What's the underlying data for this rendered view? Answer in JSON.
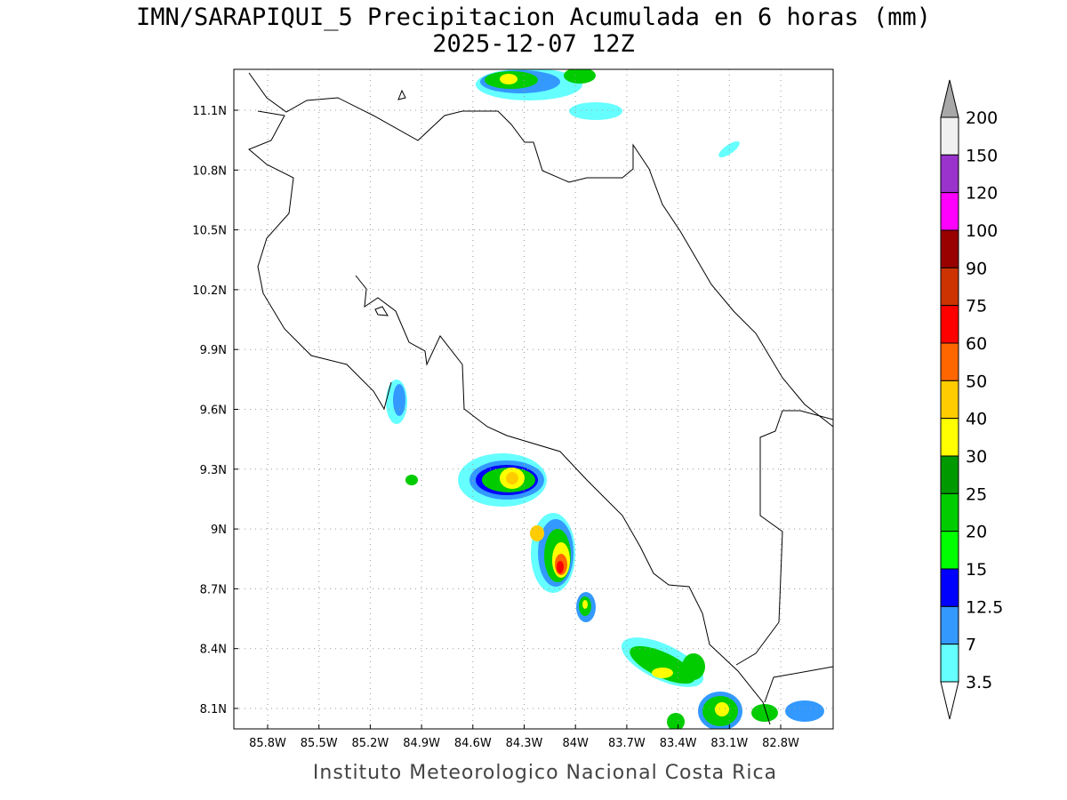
{
  "title": "IMN/SARAPIQUI_5 Precipitacion Acumulada en 6 horas (mm)",
  "subtitle": "2025-12-07 12Z",
  "footer": "Instituto Meteorologico Nacional Costa Rica",
  "lat_labels": [
    "11.1N",
    "10.8N",
    "10.5N",
    "10.2N",
    "9.9N",
    "9.6N",
    "9.3N",
    "9N",
    "8.7N",
    "8.4N",
    "8.1N"
  ],
  "lon_labels": [
    "85.8W",
    "85.5W",
    "85.2W",
    "84.9W",
    "84.6W",
    "84.3W",
    "84W",
    "83.7W",
    "83.4W",
    "83.1W",
    "82.8W"
  ],
  "colorbar": {
    "levels": [
      200,
      150,
      120,
      100,
      90,
      75,
      60,
      50,
      40,
      30,
      25,
      20,
      15,
      12.5,
      7,
      3.5
    ],
    "colors": [
      "#f0f0f0",
      "#9933cc",
      "#ff00ff",
      "#990000",
      "#cc3300",
      "#ff0000",
      "#ff6600",
      "#ffcc00",
      "#ffff00",
      "#009900",
      "#00cc00",
      "#00ff00",
      "#0000ff",
      "#3399ff",
      "#66ffff"
    ],
    "over_color": "#a8a8a8",
    "under_color": "#ffffff"
  }
}
